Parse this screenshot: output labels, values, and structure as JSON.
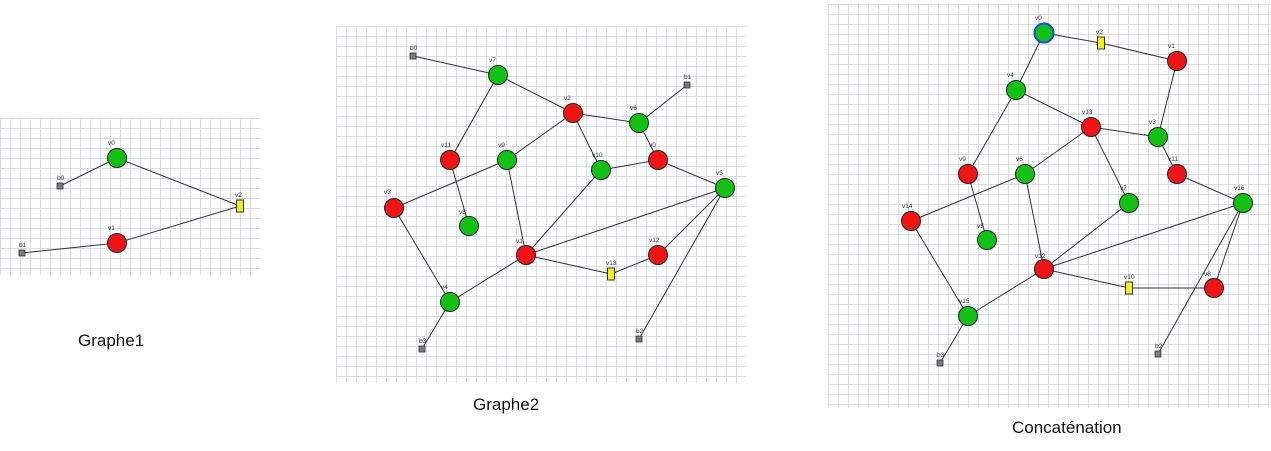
{
  "colors": {
    "green": "#12c212",
    "red": "#f01414",
    "yellow": "#f2f21a",
    "gray": "#7a7a7a",
    "highlight_ring": "#1d4fd8"
  },
  "graphs": [
    {
      "caption": "Graphe1",
      "nodes": [
        {
          "id": "v0",
          "label": "v0",
          "kind": "green"
        },
        {
          "id": "b0",
          "label": "b0",
          "kind": "gray"
        },
        {
          "id": "v2",
          "label": "v2",
          "kind": "yellow"
        },
        {
          "id": "v1",
          "label": "v1",
          "kind": "red"
        },
        {
          "id": "b1",
          "label": "b1",
          "kind": "gray"
        }
      ],
      "edges": [
        [
          "b0",
          "v0"
        ],
        [
          "v0",
          "v2"
        ],
        [
          "v2",
          "v1"
        ],
        [
          "v1",
          "b1"
        ]
      ]
    },
    {
      "caption": "Graphe2",
      "nodes": [
        {
          "id": "b0",
          "label": "b0",
          "kind": "gray"
        },
        {
          "id": "v7",
          "label": "v7",
          "kind": "green"
        },
        {
          "id": "b1",
          "label": "b1",
          "kind": "gray"
        },
        {
          "id": "v2",
          "label": "v2",
          "kind": "red"
        },
        {
          "id": "v6",
          "label": "v6",
          "kind": "green"
        },
        {
          "id": "v11",
          "label": "v11",
          "kind": "red"
        },
        {
          "id": "v9",
          "label": "v9",
          "kind": "green"
        },
        {
          "id": "v10",
          "label": "v10",
          "kind": "green"
        },
        {
          "id": "v0",
          "label": "v0",
          "kind": "red"
        },
        {
          "id": "v3",
          "label": "v3",
          "kind": "red"
        },
        {
          "id": "v5",
          "label": "v5",
          "kind": "green"
        },
        {
          "id": "v8",
          "label": "v8",
          "kind": "green"
        },
        {
          "id": "v1",
          "label": "v1",
          "kind": "red"
        },
        {
          "id": "v12",
          "label": "v12",
          "kind": "red"
        },
        {
          "id": "v13",
          "label": "v13",
          "kind": "yellow"
        },
        {
          "id": "v4",
          "label": "v4",
          "kind": "green"
        },
        {
          "id": "b3",
          "label": "b3",
          "kind": "gray"
        },
        {
          "id": "b2",
          "label": "b2",
          "kind": "gray"
        }
      ],
      "edges": [
        [
          "b0",
          "v7"
        ],
        [
          "v7",
          "v2"
        ],
        [
          "v7",
          "v11"
        ],
        [
          "v2",
          "v6"
        ],
        [
          "v6",
          "b1"
        ],
        [
          "v2",
          "v9"
        ],
        [
          "v2",
          "v10"
        ],
        [
          "v6",
          "v0"
        ],
        [
          "v10",
          "v0"
        ],
        [
          "v0",
          "v5"
        ],
        [
          "v9",
          "v3"
        ],
        [
          "v9",
          "v1"
        ],
        [
          "v11",
          "v8"
        ],
        [
          "v10",
          "v1"
        ],
        [
          "v3",
          "v4"
        ],
        [
          "v4",
          "v1"
        ],
        [
          "v4",
          "b3"
        ],
        [
          "v1",
          "v13"
        ],
        [
          "v13",
          "v12"
        ],
        [
          "v12",
          "v5"
        ],
        [
          "v1",
          "v5"
        ],
        [
          "v5",
          "b2"
        ]
      ]
    },
    {
      "caption": "Concaténation",
      "nodes": [
        {
          "id": "v0",
          "label": "v0",
          "kind": "green",
          "ring": true
        },
        {
          "id": "v2",
          "label": "v2",
          "kind": "yellow"
        },
        {
          "id": "v1",
          "label": "v1",
          "kind": "red"
        },
        {
          "id": "v4",
          "label": "v4",
          "kind": "green"
        },
        {
          "id": "v13",
          "label": "v13",
          "kind": "red"
        },
        {
          "id": "v3",
          "label": "v3",
          "kind": "green"
        },
        {
          "id": "v9",
          "label": "v9",
          "kind": "red"
        },
        {
          "id": "v6",
          "label": "v6",
          "kind": "green"
        },
        {
          "id": "v11",
          "label": "v11",
          "kind": "red"
        },
        {
          "id": "v7",
          "label": "v7",
          "kind": "green"
        },
        {
          "id": "v16",
          "label": "v16",
          "kind": "green"
        },
        {
          "id": "v14",
          "label": "v14",
          "kind": "red"
        },
        {
          "id": "v5",
          "label": "v5",
          "kind": "green"
        },
        {
          "id": "v12",
          "label": "v12",
          "kind": "red"
        },
        {
          "id": "v10",
          "label": "v10",
          "kind": "yellow"
        },
        {
          "id": "v8",
          "label": "v8",
          "kind": "red"
        },
        {
          "id": "v15",
          "label": "v15",
          "kind": "green"
        },
        {
          "id": "b3",
          "label": "b3",
          "kind": "gray"
        },
        {
          "id": "b2",
          "label": "b2",
          "kind": "gray"
        }
      ],
      "edges": [
        [
          "v0",
          "v2"
        ],
        [
          "v2",
          "v1"
        ],
        [
          "v0",
          "v4"
        ],
        [
          "v1",
          "v3"
        ],
        [
          "v4",
          "v13"
        ],
        [
          "v4",
          "v9"
        ],
        [
          "v13",
          "v3"
        ],
        [
          "v13",
          "v6"
        ],
        [
          "v13",
          "v7"
        ],
        [
          "v3",
          "v11"
        ],
        [
          "v11",
          "v16"
        ],
        [
          "v6",
          "v14"
        ],
        [
          "v9",
          "v5"
        ],
        [
          "v6",
          "v12"
        ],
        [
          "v7",
          "v12"
        ],
        [
          "v12",
          "v16"
        ],
        [
          "v14",
          "v15"
        ],
        [
          "v15",
          "v12"
        ],
        [
          "v15",
          "b3"
        ],
        [
          "v12",
          "v10"
        ],
        [
          "v10",
          "v8"
        ],
        [
          "v8",
          "v16"
        ],
        [
          "v16",
          "b2"
        ]
      ]
    }
  ]
}
